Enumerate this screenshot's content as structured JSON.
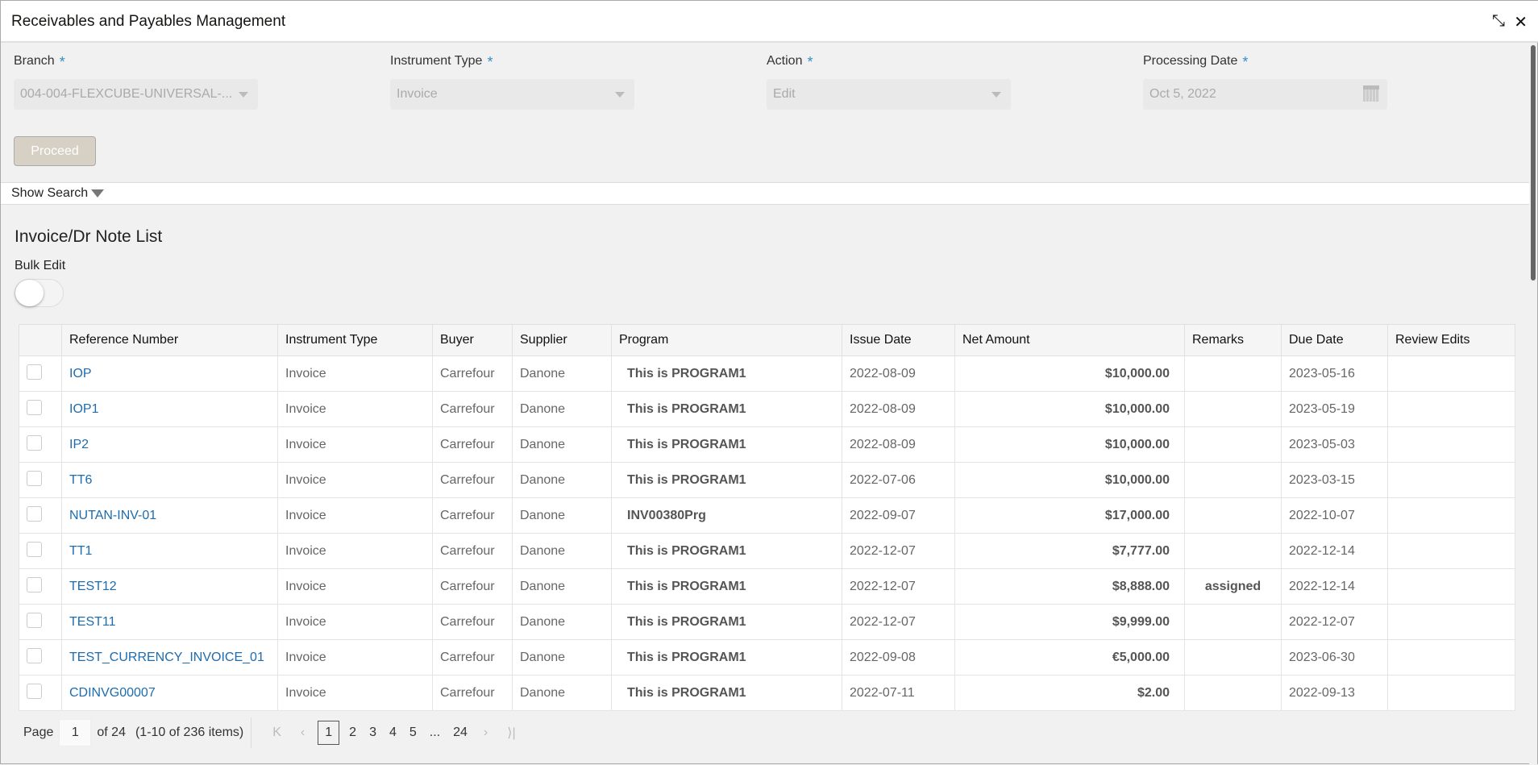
{
  "window": {
    "title": "Receivables and Payables Management",
    "minimize_icon": "compress-arrows-icon",
    "close_icon": "close-icon"
  },
  "form": {
    "branch": {
      "label": "Branch",
      "value": "004-004-FLEXCUBE-UNIVERSAL-..."
    },
    "instrument_type": {
      "label": "Instrument Type",
      "value": "Invoice"
    },
    "action": {
      "label": "Action",
      "value": "Edit"
    },
    "processing_date": {
      "label": "Processing Date",
      "value": "Oct 5, 2022"
    },
    "required_mark": "*",
    "proceed_label": "Proceed"
  },
  "show_search": "Show Search",
  "list": {
    "title": "Invoice/Dr Note List",
    "bulk_edit_label": "Bulk Edit",
    "bulk_edit_on": false,
    "columns": [
      "Reference Number",
      "Instrument Type",
      "Buyer",
      "Supplier",
      "Program",
      "Issue Date",
      "Net Amount",
      "Remarks",
      "Due Date",
      "Review Edits"
    ],
    "rows": [
      {
        "ref": "IOP",
        "type": "Invoice",
        "buyer": "Carrefour",
        "supplier": "Danone",
        "program": "This is PROGRAM1",
        "issue": "2022-08-09",
        "amount": "$10,000.00",
        "remarks": "",
        "due": "2023-05-16",
        "review": ""
      },
      {
        "ref": "IOP1",
        "type": "Invoice",
        "buyer": "Carrefour",
        "supplier": "Danone",
        "program": "This is PROGRAM1",
        "issue": "2022-08-09",
        "amount": "$10,000.00",
        "remarks": "",
        "due": "2023-05-19",
        "review": ""
      },
      {
        "ref": "IP2",
        "type": "Invoice",
        "buyer": "Carrefour",
        "supplier": "Danone",
        "program": "This is PROGRAM1",
        "issue": "2022-08-09",
        "amount": "$10,000.00",
        "remarks": "",
        "due": "2023-05-03",
        "review": ""
      },
      {
        "ref": "TT6",
        "type": "Invoice",
        "buyer": "Carrefour",
        "supplier": "Danone",
        "program": "This is PROGRAM1",
        "issue": "2022-07-06",
        "amount": "$10,000.00",
        "remarks": "",
        "due": "2023-03-15",
        "review": ""
      },
      {
        "ref": "NUTAN-INV-01",
        "type": "Invoice",
        "buyer": "Carrefour",
        "supplier": "Danone",
        "program": "INV00380Prg",
        "issue": "2022-09-07",
        "amount": "$17,000.00",
        "remarks": "",
        "due": "2022-10-07",
        "review": ""
      },
      {
        "ref": "TT1",
        "type": "Invoice",
        "buyer": "Carrefour",
        "supplier": "Danone",
        "program": "This is PROGRAM1",
        "issue": "2022-12-07",
        "amount": "$7,777.00",
        "remarks": "",
        "due": "2022-12-14",
        "review": ""
      },
      {
        "ref": "TEST12",
        "type": "Invoice",
        "buyer": "Carrefour",
        "supplier": "Danone",
        "program": "This is PROGRAM1",
        "issue": "2022-12-07",
        "amount": "$8,888.00",
        "remarks": "assigned",
        "due": "2022-12-14",
        "review": ""
      },
      {
        "ref": "TEST11",
        "type": "Invoice",
        "buyer": "Carrefour",
        "supplier": "Danone",
        "program": "This is PROGRAM1",
        "issue": "2022-12-07",
        "amount": "$9,999.00",
        "remarks": "",
        "due": "2022-12-07",
        "review": ""
      },
      {
        "ref": "TEST_CURRENCY_INVOICE_01",
        "type": "Invoice",
        "buyer": "Carrefour",
        "supplier": "Danone",
        "program": "This is PROGRAM1",
        "issue": "2022-09-08",
        "amount": "€5,000.00",
        "remarks": "",
        "due": "2023-06-30",
        "review": ""
      },
      {
        "ref": "CDINVG00007",
        "type": "Invoice",
        "buyer": "Carrefour",
        "supplier": "Danone",
        "program": "This is PROGRAM1",
        "issue": "2022-07-11",
        "amount": "$2.00",
        "remarks": "",
        "due": "2022-09-13",
        "review": ""
      }
    ]
  },
  "pagination": {
    "page_label": "Page",
    "current": "1",
    "of_label": "of 24",
    "items_summary": "(1-10 of 236 items)",
    "pages": [
      "1",
      "2",
      "3",
      "4",
      "5",
      "...",
      "24"
    ]
  },
  "colors": {
    "link": "#1c6cb0",
    "required": "#3a8dc4",
    "proceed_bg": "#d6d0c5"
  }
}
